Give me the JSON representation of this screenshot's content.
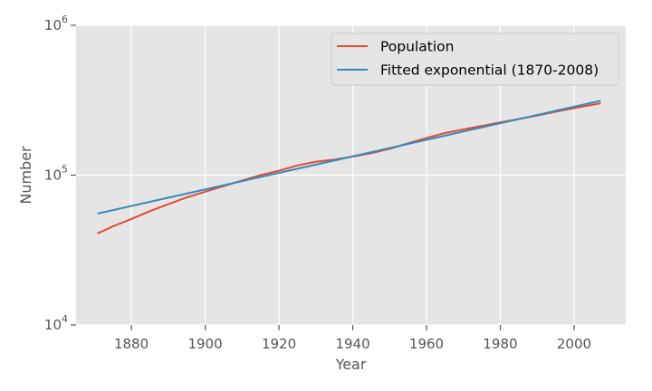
{
  "chart_data": {
    "type": "line",
    "xlabel": "Year",
    "ylabel": "Number",
    "xlim": [
      1865,
      2014
    ],
    "ylim": [
      10000,
      1000000
    ],
    "yscale": "log",
    "grid": true,
    "legend_position": "top-right",
    "x_ticks": [
      1880,
      1900,
      1920,
      1940,
      1960,
      1980,
      2000
    ],
    "y_ticks": [
      {
        "value": 10000,
        "base": "10",
        "exp": "4"
      },
      {
        "value": 100000,
        "base": "10",
        "exp": "5"
      },
      {
        "value": 1000000,
        "base": "10",
        "exp": "6"
      }
    ],
    "series": [
      {
        "name": "Population",
        "color": "#E24A33",
        "x": [
          1871,
          1875,
          1880,
          1885,
          1890,
          1895,
          1900,
          1905,
          1910,
          1915,
          1920,
          1925,
          1930,
          1935,
          1940,
          1945,
          1950,
          1955,
          1960,
          1965,
          1970,
          1975,
          1980,
          1985,
          1990,
          1995,
          2000,
          2005,
          2007
        ],
        "y": [
          41000,
          45500,
          51000,
          57500,
          64000,
          71000,
          77500,
          84500,
          92000,
          100000,
          107000,
          116000,
          123000,
          127000,
          133000,
          140000,
          150000,
          163000,
          177000,
          191000,
          202000,
          213000,
          225000,
          237000,
          250000,
          265000,
          280000,
          295000,
          301000
        ]
      },
      {
        "name": "Fitted exponential (1870-2008)",
        "color": "#348ABD",
        "x": [
          1871,
          2007
        ],
        "y": [
          55500,
          313000
        ]
      }
    ]
  }
}
